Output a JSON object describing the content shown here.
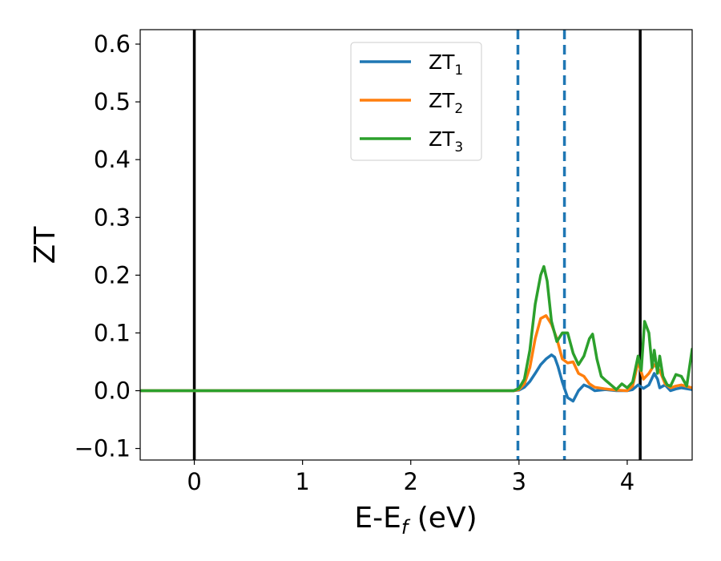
{
  "chart_data": {
    "type": "line",
    "xlabel": {
      "main": "E-E",
      "sub": "f",
      "unit": " (eV)"
    },
    "ylabel": "ZT",
    "xlim": [
      -0.5,
      4.6
    ],
    "ylim": [
      -0.12,
      0.625
    ],
    "x_ticks": [
      0,
      1,
      2,
      3,
      4
    ],
    "y_ticks": [
      -0.1,
      0.0,
      0.1,
      0.2,
      0.3,
      0.4,
      0.5,
      0.6
    ],
    "x_tick_labels": [
      "0",
      "1",
      "2",
      "3",
      "4"
    ],
    "y_tick_labels": [
      "−0.1",
      "0.0",
      "0.1",
      "0.2",
      "0.3",
      "0.4",
      "0.5",
      "0.6"
    ],
    "grid": false,
    "legend_position": "top-center",
    "vertical_lines": [
      {
        "x": 0.0,
        "style": "solid",
        "color": "#000000"
      },
      {
        "x": 2.99,
        "style": "dashed",
        "color": "#1f77b4"
      },
      {
        "x": 3.42,
        "style": "dashed",
        "color": "#1f77b4"
      },
      {
        "x": 4.12,
        "style": "solid",
        "color": "#000000"
      }
    ],
    "series": [
      {
        "name": "ZT",
        "name_sub": "1",
        "color": "#1f77b4",
        "x": [
          -0.5,
          2.95,
          3.0,
          3.05,
          3.1,
          3.15,
          3.2,
          3.25,
          3.3,
          3.33,
          3.36,
          3.4,
          3.45,
          3.5,
          3.55,
          3.6,
          3.65,
          3.7,
          3.8,
          3.9,
          4.0,
          4.05,
          4.1,
          4.15,
          4.2,
          4.25,
          4.28,
          4.3,
          4.35,
          4.4,
          4.45,
          4.5,
          4.6
        ],
        "y": [
          0.0,
          0.0,
          0.001,
          0.006,
          0.016,
          0.03,
          0.045,
          0.055,
          0.062,
          0.058,
          0.042,
          0.015,
          -0.012,
          -0.018,
          0.0,
          0.01,
          0.006,
          0.0,
          0.002,
          0.0,
          0.0,
          0.002,
          0.01,
          0.004,
          0.01,
          0.03,
          0.02,
          0.005,
          0.01,
          0.0,
          0.003,
          0.005,
          0.002
        ]
      },
      {
        "name": "ZT",
        "name_sub": "2",
        "color": "#ff7f0e",
        "x": [
          -0.5,
          2.95,
          3.0,
          3.05,
          3.1,
          3.15,
          3.2,
          3.25,
          3.3,
          3.35,
          3.4,
          3.45,
          3.5,
          3.55,
          3.6,
          3.65,
          3.7,
          3.8,
          3.9,
          4.0,
          4.05,
          4.1,
          4.15,
          4.2,
          4.25,
          4.3,
          4.35,
          4.4,
          4.45,
          4.5,
          4.6
        ],
        "y": [
          0.0,
          0.0,
          0.002,
          0.012,
          0.04,
          0.09,
          0.125,
          0.13,
          0.115,
          0.09,
          0.055,
          0.048,
          0.05,
          0.03,
          0.025,
          0.012,
          0.006,
          0.003,
          0.001,
          0.0,
          0.008,
          0.05,
          0.02,
          0.03,
          0.045,
          0.035,
          0.012,
          0.005,
          0.008,
          0.01,
          0.005
        ]
      },
      {
        "name": "ZT",
        "name_sub": "3",
        "color": "#2ca02c",
        "x": [
          -0.5,
          2.95,
          3.0,
          3.05,
          3.1,
          3.15,
          3.2,
          3.23,
          3.26,
          3.3,
          3.35,
          3.4,
          3.45,
          3.5,
          3.55,
          3.6,
          3.65,
          3.68,
          3.72,
          3.76,
          3.8,
          3.85,
          3.9,
          3.95,
          4.0,
          4.05,
          4.1,
          4.13,
          4.16,
          4.2,
          4.23,
          4.25,
          4.28,
          4.3,
          4.33,
          4.37,
          4.4,
          4.45,
          4.5,
          4.55,
          4.6
        ],
        "y": [
          0.0,
          0.0,
          0.004,
          0.02,
          0.07,
          0.15,
          0.2,
          0.215,
          0.19,
          0.12,
          0.085,
          0.1,
          0.1,
          0.065,
          0.045,
          0.06,
          0.09,
          0.098,
          0.055,
          0.025,
          0.018,
          0.01,
          0.002,
          0.012,
          0.005,
          0.015,
          0.06,
          0.035,
          0.12,
          0.1,
          0.04,
          0.07,
          0.03,
          0.06,
          0.025,
          0.01,
          0.008,
          0.028,
          0.025,
          0.008,
          0.072
        ]
      }
    ]
  }
}
